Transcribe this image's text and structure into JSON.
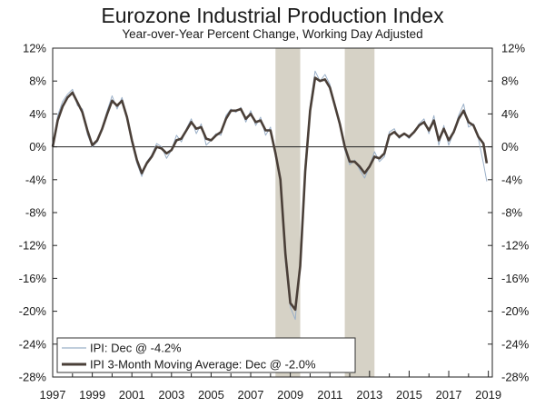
{
  "chart_data": {
    "type": "line",
    "title": "Eurozone Industrial Production Index",
    "subtitle": "Year-over-Year Percent Change, Working Day Adjusted",
    "x_ticks": [
      "1997",
      "1999",
      "2001",
      "2003",
      "2005",
      "2007",
      "2009",
      "2011",
      "2013",
      "2015",
      "2017",
      "2019"
    ],
    "y_ticks": [
      "12%",
      "8%",
      "4%",
      "0%",
      "-4%",
      "-8%",
      "-12%",
      "-16%",
      "-20%",
      "-24%",
      "-28%"
    ],
    "y_tick_values": [
      12,
      8,
      4,
      0,
      -4,
      -8,
      -12,
      -16,
      -20,
      -24,
      -28
    ],
    "xlim": [
      1997.0,
      2019.2
    ],
    "ylim": [
      -28,
      12
    ],
    "grid": false,
    "legend_position": "bottom-left",
    "recession_shading": [
      [
        2008.25,
        2009.5
      ],
      [
        2011.75,
        2013.25
      ]
    ],
    "colors": {
      "ipi": "#9bb0c8",
      "ma": "#4a3f38",
      "shade": "#d6d2c6",
      "axis": "#222222"
    },
    "series": [
      {
        "name": "IPI: Dec @ -4.2%",
        "x": [
          1997.0,
          1997.25,
          1997.5,
          1997.75,
          1998.0,
          1998.25,
          1998.5,
          1998.75,
          1999.0,
          1999.25,
          1999.5,
          1999.75,
          2000.0,
          2000.25,
          2000.5,
          2000.75,
          2001.0,
          2001.25,
          2001.5,
          2001.75,
          2002.0,
          2002.25,
          2002.5,
          2002.75,
          2003.0,
          2003.25,
          2003.5,
          2003.75,
          2004.0,
          2004.25,
          2004.5,
          2004.75,
          2005.0,
          2005.25,
          2005.5,
          2005.75,
          2006.0,
          2006.25,
          2006.5,
          2006.75,
          2007.0,
          2007.25,
          2007.5,
          2007.75,
          2008.0,
          2008.25,
          2008.5,
          2008.75,
          2009.0,
          2009.25,
          2009.5,
          2009.75,
          2010.0,
          2010.25,
          2010.5,
          2010.75,
          2011.0,
          2011.25,
          2011.5,
          2011.75,
          2012.0,
          2012.25,
          2012.5,
          2012.75,
          2013.0,
          2013.25,
          2013.5,
          2013.75,
          2014.0,
          2014.25,
          2014.5,
          2014.75,
          2015.0,
          2015.25,
          2015.5,
          2015.75,
          2016.0,
          2016.25,
          2016.5,
          2016.75,
          2017.0,
          2017.25,
          2017.5,
          2017.75,
          2018.0,
          2018.25,
          2018.5,
          2018.75,
          2018.92
        ],
        "values": [
          0.0,
          3.8,
          5.5,
          6.4,
          7.0,
          5.0,
          4.6,
          1.5,
          0.0,
          0.6,
          2.4,
          4.4,
          6.2,
          4.6,
          6.0,
          3.6,
          0.5,
          -2.0,
          -3.6,
          -1.8,
          -1.0,
          0.4,
          0.0,
          -1.4,
          -0.4,
          1.4,
          0.6,
          2.2,
          3.4,
          1.6,
          2.8,
          0.2,
          0.8,
          1.6,
          1.4,
          3.8,
          4.6,
          4.2,
          4.8,
          3.0,
          4.4,
          2.6,
          3.6,
          1.4,
          2.4,
          -1.2,
          -4.2,
          -14.0,
          -19.5,
          -21.0,
          -14.0,
          -2.0,
          5.0,
          9.2,
          8.0,
          8.8,
          7.6,
          4.8,
          2.6,
          -0.4,
          -2.2,
          -1.6,
          -2.8,
          -3.8,
          -2.4,
          -0.6,
          -1.8,
          -1.2,
          1.8,
          2.2,
          1.0,
          1.6,
          1.0,
          1.8,
          2.8,
          3.4,
          1.6,
          3.8,
          0.2,
          2.6,
          0.2,
          1.8,
          3.8,
          5.2,
          2.4,
          2.8,
          1.0,
          -2.0,
          -4.2
        ]
      },
      {
        "name": "IPI 3-Month Moving Average: Dec @ -2.0%",
        "x": [
          1997.0,
          1997.25,
          1997.5,
          1997.75,
          1998.0,
          1998.25,
          1998.5,
          1998.75,
          1999.0,
          1999.25,
          1999.5,
          1999.75,
          2000.0,
          2000.25,
          2000.5,
          2000.75,
          2001.0,
          2001.25,
          2001.5,
          2001.75,
          2002.0,
          2002.25,
          2002.5,
          2002.75,
          2003.0,
          2003.25,
          2003.5,
          2003.75,
          2004.0,
          2004.25,
          2004.5,
          2004.75,
          2005.0,
          2005.25,
          2005.5,
          2005.75,
          2006.0,
          2006.25,
          2006.5,
          2006.75,
          2007.0,
          2007.25,
          2007.5,
          2007.75,
          2008.0,
          2008.25,
          2008.5,
          2008.75,
          2009.0,
          2009.25,
          2009.5,
          2009.75,
          2010.0,
          2010.25,
          2010.5,
          2010.75,
          2011.0,
          2011.25,
          2011.5,
          2011.75,
          2012.0,
          2012.25,
          2012.5,
          2012.75,
          2013.0,
          2013.25,
          2013.5,
          2013.75,
          2014.0,
          2014.25,
          2014.5,
          2014.75,
          2015.0,
          2015.25,
          2015.5,
          2015.75,
          2016.0,
          2016.25,
          2016.5,
          2016.75,
          2017.0,
          2017.25,
          2017.5,
          2017.75,
          2018.0,
          2018.25,
          2018.5,
          2018.75,
          2018.92
        ],
        "values": [
          0.0,
          3.2,
          4.9,
          6.0,
          6.6,
          5.4,
          4.2,
          2.0,
          0.2,
          0.8,
          2.2,
          4.0,
          5.6,
          5.0,
          5.6,
          3.6,
          0.8,
          -1.6,
          -3.2,
          -2.0,
          -1.2,
          0.0,
          -0.2,
          -0.8,
          -0.4,
          0.8,
          1.0,
          2.0,
          3.0,
          2.2,
          2.4,
          1.0,
          0.8,
          1.4,
          1.8,
          3.4,
          4.4,
          4.4,
          4.6,
          3.4,
          4.0,
          3.0,
          3.2,
          2.0,
          2.0,
          -0.8,
          -4.0,
          -13.0,
          -19.0,
          -19.8,
          -14.5,
          -3.0,
          4.4,
          8.4,
          8.0,
          8.2,
          7.2,
          5.0,
          2.8,
          0.0,
          -1.8,
          -1.8,
          -2.4,
          -3.2,
          -2.4,
          -1.2,
          -1.4,
          -0.8,
          1.4,
          1.8,
          1.2,
          1.6,
          1.2,
          1.8,
          2.6,
          3.0,
          2.0,
          3.2,
          0.8,
          2.2,
          0.8,
          1.8,
          3.4,
          4.4,
          3.0,
          2.6,
          1.2,
          0.4,
          -2.0
        ]
      }
    ]
  }
}
